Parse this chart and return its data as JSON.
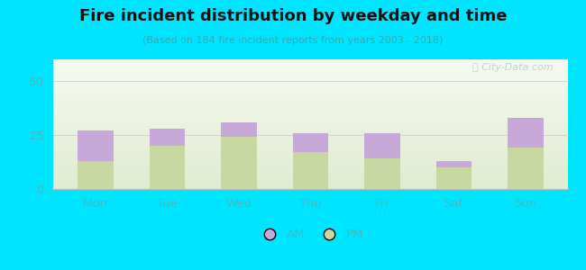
{
  "title": "Fire incident distribution by weekday and time",
  "subtitle": "(Based on 184 fire incident reports from years 2003 - 2018)",
  "categories": [
    "Mon",
    "Tue",
    "Wed",
    "Thu",
    "Fri",
    "Sat",
    "Sun"
  ],
  "pm_values": [
    13,
    20,
    24,
    17,
    14,
    10,
    19
  ],
  "am_values": [
    14,
    8,
    7,
    9,
    12,
    3,
    14
  ],
  "am_color": "#c8a8d8",
  "pm_color": "#c8d8a0",
  "ylim": [
    0,
    60
  ],
  "yticks": [
    0,
    25,
    50
  ],
  "bg_outer": "#00e5ff",
  "bg_plot_top": "#f0f8f0",
  "bg_plot_bottom": "#d8eab8",
  "tick_color": "#44bbbb",
  "watermark": "City-Data.com",
  "bar_width": 0.5,
  "title_color": "#111111",
  "subtitle_color": "#33aaaa"
}
